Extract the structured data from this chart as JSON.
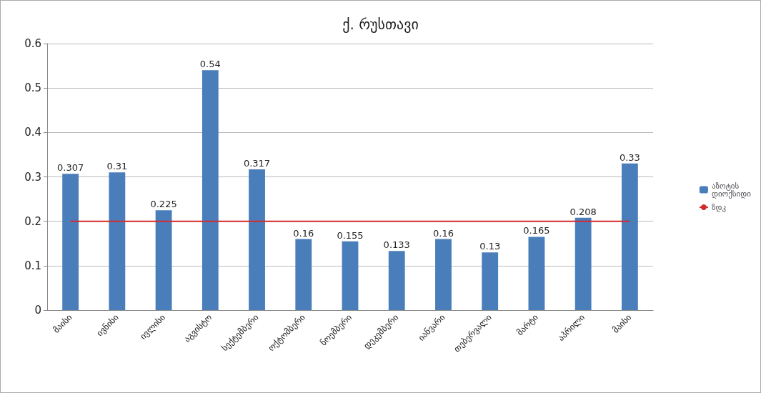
{
  "chart_data": {
    "type": "bar",
    "title": "ქ. რუსთავი",
    "categories": [
      "მაისი",
      "ივნისი",
      "ივლისი",
      "აგვისტო",
      "სექტემბერი",
      "ოქტომბერი",
      "ნოემბერი",
      "დეკემბერი",
      "იანვარი",
      "თებერვალი",
      "მარტი",
      "აპრილი",
      "მაისი"
    ],
    "series": [
      {
        "name": "აზოტის დიოქსიდი",
        "color": "#4a7ebb",
        "values": [
          0.307,
          0.31,
          0.225,
          0.54,
          0.317,
          0.16,
          0.155,
          0.133,
          0.16,
          0.13,
          0.165,
          0.208,
          0.33
        ],
        "data_labels": true
      },
      {
        "name": "ზდკ",
        "type": "line",
        "color": "#d42a2a",
        "marker": "none",
        "values": [
          0.2,
          0.2,
          0.2,
          0.2,
          0.2,
          0.2,
          0.2,
          0.2,
          0.2,
          0.2,
          0.2,
          0.2,
          0.2
        ]
      }
    ],
    "ylim": [
      0,
      0.6
    ],
    "yticks": [
      0,
      0.1,
      0.2,
      0.3,
      0.4,
      0.5,
      0.6
    ],
    "grid": "y",
    "legend": "right"
  }
}
